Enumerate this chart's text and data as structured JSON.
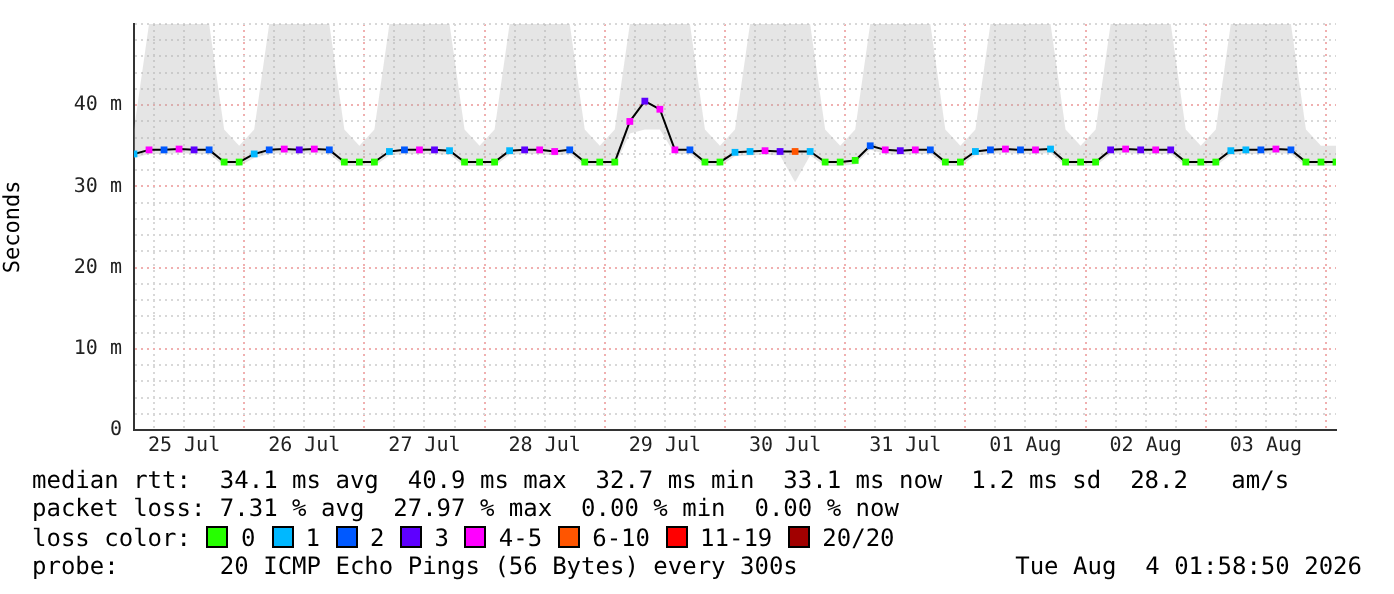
{
  "chart_data": {
    "type": "line",
    "ylabel": "Seconds",
    "legend_title": "loss color:",
    "legend": "bottom",
    "grid": true,
    "marker": "square",
    "xlim": [
      "2026-07-25T02:00",
      "2026-08-04T02:00"
    ],
    "xticks": [
      {
        "value": "2026-07-25T06:00",
        "label": null
      },
      {
        "value": "2026-07-25T12:00",
        "label": "25 Jul"
      },
      {
        "value": "2026-07-25T18:00",
        "label": null
      },
      {
        "value": "2026-07-26T00:00",
        "label": null
      },
      {
        "value": "2026-07-26T06:00",
        "label": null
      },
      {
        "value": "2026-07-26T12:00",
        "label": "26 Jul"
      },
      {
        "value": "2026-07-26T18:00",
        "label": null
      },
      {
        "value": "2026-07-27T00:00",
        "label": null
      },
      {
        "value": "2026-07-27T06:00",
        "label": null
      },
      {
        "value": "2026-07-27T12:00",
        "label": "27 Jul"
      },
      {
        "value": "2026-07-27T18:00",
        "label": null
      },
      {
        "value": "2026-07-28T00:00",
        "label": null
      },
      {
        "value": "2026-07-28T06:00",
        "label": null
      },
      {
        "value": "2026-07-28T12:00",
        "label": "28 Jul"
      },
      {
        "value": "2026-07-28T18:00",
        "label": null
      },
      {
        "value": "2026-07-29T00:00",
        "label": null
      },
      {
        "value": "2026-07-29T06:00",
        "label": null
      },
      {
        "value": "2026-07-29T12:00",
        "label": "29 Jul"
      },
      {
        "value": "2026-07-29T18:00",
        "label": null
      },
      {
        "value": "2026-07-30T00:00",
        "label": null
      },
      {
        "value": "2026-07-30T06:00",
        "label": null
      },
      {
        "value": "2026-07-30T12:00",
        "label": "30 Jul"
      },
      {
        "value": "2026-07-30T18:00",
        "label": null
      },
      {
        "value": "2026-07-31T00:00",
        "label": null
      },
      {
        "value": "2026-07-31T06:00",
        "label": null
      },
      {
        "value": "2026-07-31T12:00",
        "label": "31 Jul"
      },
      {
        "value": "2026-07-31T18:00",
        "label": null
      },
      {
        "value": "2026-08-01T00:00",
        "label": null
      },
      {
        "value": "2026-08-01T06:00",
        "label": null
      },
      {
        "value": "2026-08-01T12:00",
        "label": "01 Aug"
      },
      {
        "value": "2026-08-01T18:00",
        "label": null
      },
      {
        "value": "2026-08-02T00:00",
        "label": null
      },
      {
        "value": "2026-08-02T06:00",
        "label": null
      },
      {
        "value": "2026-08-02T12:00",
        "label": "02 Aug"
      },
      {
        "value": "2026-08-02T18:00",
        "label": null
      },
      {
        "value": "2026-08-03T00:00",
        "label": null
      },
      {
        "value": "2026-08-03T06:00",
        "label": null
      },
      {
        "value": "2026-08-03T12:00",
        "label": "03 Aug"
      },
      {
        "value": "2026-08-03T18:00",
        "label": null
      },
      {
        "value": "2026-08-04T00:00",
        "label": null
      }
    ],
    "ylim": [
      0,
      50
    ],
    "yticks": [
      {
        "value": 0,
        "label": "0"
      },
      {
        "value": 2,
        "label": null
      },
      {
        "value": 4,
        "label": null
      },
      {
        "value": 6,
        "label": null
      },
      {
        "value": 8,
        "label": null
      },
      {
        "value": 10,
        "label": "10 m"
      },
      {
        "value": 12,
        "label": null
      },
      {
        "value": 14,
        "label": null
      },
      {
        "value": 16,
        "label": null
      },
      {
        "value": 18,
        "label": null
      },
      {
        "value": 20,
        "label": "20 m"
      },
      {
        "value": 22,
        "label": null
      },
      {
        "value": 24,
        "label": null
      },
      {
        "value": 26,
        "label": null
      },
      {
        "value": 28,
        "label": null
      },
      {
        "value": 30,
        "label": "30 m"
      },
      {
        "value": 32,
        "label": null
      },
      {
        "value": 34,
        "label": null
      },
      {
        "value": 36,
        "label": null
      },
      {
        "value": 38,
        "label": null
      },
      {
        "value": 40,
        "label": "40 m"
      },
      {
        "value": 42,
        "label": null
      },
      {
        "value": 44,
        "label": null
      },
      {
        "value": 46,
        "label": null
      },
      {
        "value": 48,
        "label": null
      },
      {
        "value": 50,
        "label": null
      }
    ],
    "x": [
      "2026-07-25T02:00",
      "2026-07-25T05:00",
      "2026-07-25T08:00",
      "2026-07-25T11:00",
      "2026-07-25T14:00",
      "2026-07-25T17:00",
      "2026-07-25T20:00",
      "2026-07-25T23:00",
      "2026-07-26T02:00",
      "2026-07-26T05:00",
      "2026-07-26T08:00",
      "2026-07-26T11:00",
      "2026-07-26T14:00",
      "2026-07-26T17:00",
      "2026-07-26T20:00",
      "2026-07-26T23:00",
      "2026-07-27T02:00",
      "2026-07-27T05:00",
      "2026-07-27T08:00",
      "2026-07-27T11:00",
      "2026-07-27T14:00",
      "2026-07-27T17:00",
      "2026-07-27T20:00",
      "2026-07-27T23:00",
      "2026-07-28T02:00",
      "2026-07-28T05:00",
      "2026-07-28T08:00",
      "2026-07-28T11:00",
      "2026-07-28T14:00",
      "2026-07-28T17:00",
      "2026-07-28T20:00",
      "2026-07-28T23:00",
      "2026-07-29T02:00",
      "2026-07-29T05:00",
      "2026-07-29T08:00",
      "2026-07-29T11:00",
      "2026-07-29T14:00",
      "2026-07-29T17:00",
      "2026-07-29T20:00",
      "2026-07-29T23:00",
      "2026-07-30T02:00",
      "2026-07-30T05:00",
      "2026-07-30T08:00",
      "2026-07-30T11:00",
      "2026-07-30T14:00",
      "2026-07-30T17:00",
      "2026-07-30T20:00",
      "2026-07-30T23:00",
      "2026-07-31T02:00",
      "2026-07-31T05:00",
      "2026-07-31T08:00",
      "2026-07-31T11:00",
      "2026-07-31T14:00",
      "2026-07-31T17:00",
      "2026-07-31T20:00",
      "2026-07-31T23:00",
      "2026-08-01T02:00",
      "2026-08-01T05:00",
      "2026-08-01T08:00",
      "2026-08-01T11:00",
      "2026-08-01T14:00",
      "2026-08-01T17:00",
      "2026-08-01T20:00",
      "2026-08-01T23:00",
      "2026-08-02T02:00",
      "2026-08-02T05:00",
      "2026-08-02T08:00",
      "2026-08-02T11:00",
      "2026-08-02T14:00",
      "2026-08-02T17:00",
      "2026-08-02T20:00",
      "2026-08-02T23:00",
      "2026-08-03T02:00",
      "2026-08-03T05:00",
      "2026-08-03T08:00",
      "2026-08-03T11:00",
      "2026-08-03T14:00",
      "2026-08-03T17:00",
      "2026-08-03T20:00",
      "2026-08-03T23:00",
      "2026-08-04T02:00"
    ],
    "series": [
      {
        "color": "#000000",
        "marker": "none",
        "values": [
          34,
          34.5,
          34.5,
          34.6,
          34.5,
          34.5,
          33,
          33,
          34,
          34.5,
          34.6,
          34.5,
          34.6,
          34.5,
          33,
          33,
          33,
          34.3,
          34.5,
          34.5,
          34.5,
          34.4,
          33,
          33,
          33,
          34.4,
          34.5,
          34.5,
          34.3,
          34.5,
          33,
          33,
          33,
          38,
          40.5,
          39.5,
          34.5,
          34.5,
          33,
          33,
          34.2,
          34.3,
          34.4,
          34.3,
          34.3,
          34.3,
          33,
          33,
          33.2,
          35,
          34.5,
          34.4,
          34.5,
          34.5,
          33,
          33,
          34.3,
          34.5,
          34.6,
          34.5,
          34.5,
          34.6,
          33,
          33,
          33,
          34.5,
          34.6,
          34.5,
          34.5,
          34.5,
          33,
          33,
          33,
          34.4,
          34.5,
          34.5,
          34.6,
          34.5,
          33,
          33,
          33
        ],
        "lower": [
          33.5,
          34,
          34,
          34.1,
          34,
          34,
          32.5,
          32.5,
          33.5,
          34,
          34.1,
          34,
          34.1,
          34,
          32.5,
          32.5,
          32.5,
          33.8,
          34,
          34,
          34,
          33.9,
          32.5,
          32.5,
          32.5,
          33.9,
          34,
          34,
          33.8,
          34,
          32.5,
          32.5,
          32.5,
          36.5,
          37,
          37,
          34,
          34,
          32.5,
          32.5,
          33.7,
          33.8,
          33.9,
          33.8,
          30.5,
          33.8,
          32.5,
          32.5,
          32.7,
          34.5,
          34,
          33.9,
          34,
          34,
          32.5,
          32.5,
          33.8,
          34,
          34.1,
          34,
          34,
          34.1,
          32.5,
          32.5,
          32.5,
          34,
          34.1,
          34,
          34,
          34,
          32.5,
          32.5,
          32.5,
          33.9,
          34,
          34,
          34.1,
          34,
          32.5,
          32.5,
          32.5
        ],
        "upper": [
          37,
          50,
          50,
          50,
          50,
          50,
          37,
          35,
          37,
          50,
          50,
          50,
          50,
          50,
          37,
          35,
          37,
          50,
          50,
          50,
          50,
          50,
          37,
          35,
          37,
          50,
          50,
          50,
          50,
          50,
          37,
          35,
          37,
          50,
          50,
          50,
          50,
          50,
          37,
          35,
          37,
          50,
          50,
          50,
          50,
          50,
          37,
          35,
          37,
          50,
          50,
          50,
          50,
          50,
          37,
          35,
          37,
          50,
          50,
          50,
          50,
          50,
          37,
          35,
          37,
          50,
          50,
          50,
          50,
          50,
          37,
          35,
          37,
          50,
          50,
          50,
          50,
          50,
          37,
          35,
          35
        ]
      },
      {
        "type": "scatter",
        "name": "0",
        "color": "#26ff00",
        "x": [
          "2026-07-25T20:00",
          "2026-07-25T23:00",
          "2026-07-26T20:00",
          "2026-07-26T23:00",
          "2026-07-27T02:00",
          "2026-07-27T20:00",
          "2026-07-27T23:00",
          "2026-07-28T02:00",
          "2026-07-28T20:00",
          "2026-07-28T23:00",
          "2026-07-29T02:00",
          "2026-07-29T20:00",
          "2026-07-29T23:00",
          "2026-07-30T20:00",
          "2026-07-30T23:00",
          "2026-07-31T02:00",
          "2026-07-31T20:00",
          "2026-07-31T23:00",
          "2026-08-01T20:00",
          "2026-08-01T23:00",
          "2026-08-02T02:00",
          "2026-08-02T20:00",
          "2026-08-02T23:00",
          "2026-08-03T02:00",
          "2026-08-03T20:00",
          "2026-08-03T23:00",
          "2026-08-04T02:00"
        ],
        "values": [
          33,
          33,
          33,
          33,
          33,
          33,
          33,
          33,
          33,
          33,
          33,
          33,
          33,
          33,
          33,
          33.2,
          33,
          33,
          33,
          33,
          33,
          33,
          33,
          33,
          33,
          33,
          33
        ]
      },
      {
        "type": "scatter",
        "name": "1",
        "color": "#00b8ff",
        "x": [
          "2026-07-25T02:00",
          "2026-07-26T02:00",
          "2026-07-27T05:00",
          "2026-07-27T17:00",
          "2026-07-28T05:00",
          "2026-07-30T02:00",
          "2026-07-30T05:00",
          "2026-07-30T17:00",
          "2026-08-01T02:00",
          "2026-08-01T17:00",
          "2026-08-03T05:00",
          "2026-08-03T08:00"
        ],
        "values": [
          34,
          34,
          34.3,
          34.4,
          34.4,
          34.2,
          34.3,
          34.3,
          34.3,
          34.6,
          34.4,
          34.5
        ]
      },
      {
        "type": "scatter",
        "name": "2",
        "color": "#0059ff",
        "x": [
          "2026-07-25T08:00",
          "2026-07-25T17:00",
          "2026-07-26T05:00",
          "2026-07-26T17:00",
          "2026-07-27T08:00",
          "2026-07-28T17:00",
          "2026-07-29T17:00",
          "2026-07-31T05:00",
          "2026-07-31T17:00",
          "2026-08-01T05:00",
          "2026-08-01T11:00",
          "2026-08-03T11:00",
          "2026-08-03T17:00"
        ],
        "values": [
          34.5,
          34.5,
          34.5,
          34.5,
          34.5,
          34.5,
          34.5,
          35,
          34.5,
          34.5,
          34.5,
          34.5,
          34.5
        ]
      },
      {
        "type": "scatter",
        "name": "3",
        "color": "#5e00ff",
        "x": [
          "2026-07-25T14:00",
          "2026-07-26T11:00",
          "2026-07-27T14:00",
          "2026-07-28T08:00",
          "2026-07-29T08:00",
          "2026-07-30T11:00",
          "2026-07-31T11:00",
          "2026-08-02T05:00",
          "2026-08-02T11:00",
          "2026-08-02T17:00"
        ],
        "values": [
          34.5,
          34.5,
          34.5,
          34.5,
          40.5,
          34.3,
          34.4,
          34.5,
          34.5,
          34.5
        ]
      },
      {
        "type": "scatter",
        "name": "4-5",
        "color": "#ff00ff",
        "x": [
          "2026-07-25T05:00",
          "2026-07-25T11:00",
          "2026-07-26T08:00",
          "2026-07-26T14:00",
          "2026-07-27T11:00",
          "2026-07-28T11:00",
          "2026-07-28T14:00",
          "2026-07-29T05:00",
          "2026-07-29T11:00",
          "2026-07-29T14:00",
          "2026-07-30T08:00",
          "2026-07-31T08:00",
          "2026-07-31T14:00",
          "2026-08-01T08:00",
          "2026-08-01T14:00",
          "2026-08-02T08:00",
          "2026-08-02T14:00",
          "2026-08-03T14:00"
        ],
        "values": [
          34.5,
          34.6,
          34.6,
          34.6,
          34.5,
          34.5,
          34.3,
          38,
          39.5,
          34.5,
          34.4,
          34.5,
          34.5,
          34.6,
          34.5,
          34.6,
          34.5,
          34.6
        ]
      },
      {
        "type": "scatter",
        "name": "6-10",
        "color": "#ff5500",
        "x": [
          "2026-07-30T14:00"
        ],
        "values": [
          34.3
        ]
      },
      {
        "type": "scatter",
        "name": "11-19",
        "color": "#ff0000",
        "values": [
          null,
          null,
          null,
          null,
          null,
          null,
          null,
          null,
          null,
          null,
          null,
          null,
          null,
          null,
          null,
          null,
          null,
          null,
          null,
          null,
          null,
          null,
          null,
          null,
          null,
          null,
          null,
          null,
          null,
          null,
          null,
          null,
          null,
          null,
          null,
          null,
          null,
          null,
          null,
          null,
          null,
          null,
          null,
          null,
          null,
          null,
          null,
          null,
          null,
          null,
          null,
          null,
          null,
          null,
          null,
          null,
          null,
          null,
          null,
          null,
          null,
          null,
          null,
          null,
          null,
          null,
          null,
          null,
          null,
          null,
          null,
          null,
          null,
          null,
          null,
          null,
          null,
          null,
          null,
          null,
          null
        ]
      },
      {
        "type": "scatter",
        "name": "20/20",
        "color": "#a10000",
        "values": [
          null,
          null,
          null,
          null,
          null,
          null,
          null,
          null,
          null,
          null,
          null,
          null,
          null,
          null,
          null,
          null,
          null,
          null,
          null,
          null,
          null,
          null,
          null,
          null,
          null,
          null,
          null,
          null,
          null,
          null,
          null,
          null,
          null,
          null,
          null,
          null,
          null,
          null,
          null,
          null,
          null,
          null,
          null,
          null,
          null,
          null,
          null,
          null,
          null,
          null,
          null,
          null,
          null,
          null,
          null,
          null,
          null,
          null,
          null,
          null,
          null,
          null,
          null,
          null,
          null,
          null,
          null,
          null,
          null,
          null,
          null,
          null,
          null,
          null,
          null,
          null,
          null,
          null,
          null,
          null,
          null
        ]
      }
    ],
    "annotations": [
      "median rtt:  34.1 ms avg  40.9 ms max  32.7 ms min  33.1 ms now  1.2 ms sd  28.2   am/s",
      "packet loss: 7.31 % avg  27.97 % max  0.00 % min  0.00 % now",
      "probe:       20 ICMP Echo Pings (56 Bytes) every 300s",
      "Tue Aug  4 01:58:50 2026"
    ]
  }
}
